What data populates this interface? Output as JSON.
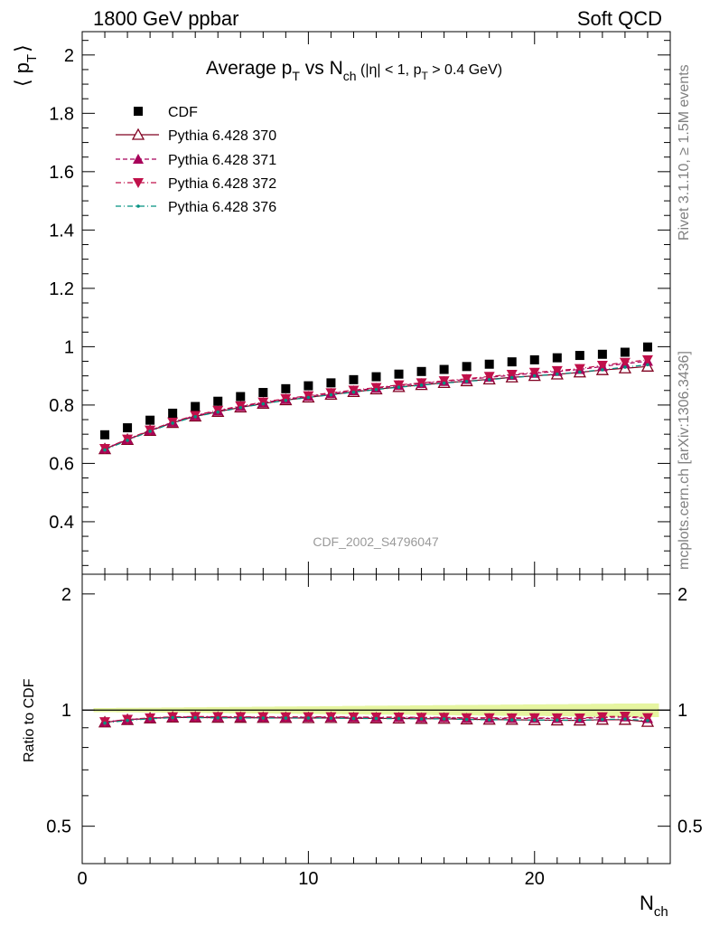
{
  "header": {
    "left": "1800 GeV ppbar",
    "right": "Soft QCD"
  },
  "side_labels": {
    "rivet": "Rivet 3.1.10, ≥ 1.5M events",
    "mcplots": "mcplots.cern.ch [arXiv:1306.3436]"
  },
  "watermark": "CDF_2002_S4796047",
  "title": {
    "avg": "Average p",
    "t1": "T",
    "vs": " vs N",
    "ch": "ch",
    "rest_a": " (|η| < 1, p",
    "t2": "T",
    "rest_b": " > 0.4 GeV)"
  },
  "axes": {
    "ylabel_main": {
      "l": "⟨ p",
      "sub": "T",
      "r": "⟩"
    },
    "ylabel_ratio": "Ratio to CDF",
    "xlabel": {
      "main": "N",
      "sub": "ch"
    },
    "x_ticks": [
      "0",
      "10",
      "20"
    ],
    "y_ticks_main": [
      "0.4",
      "0.6",
      "0.8",
      "1",
      "1.2",
      "1.4",
      "1.6",
      "1.8",
      "2"
    ],
    "y_ticks_ratio": [
      "0.5",
      "1",
      "2"
    ]
  },
  "legend": [
    {
      "label": "CDF"
    },
    {
      "label": "Pythia 6.428 370"
    },
    {
      "label": "Pythia 6.428 371"
    },
    {
      "label": "Pythia 6.428 372"
    },
    {
      "label": "Pythia 6.428 376"
    }
  ],
  "chart_data": {
    "type": "scatter",
    "x_label": "N_ch",
    "y_label": "<p_T>",
    "xlim": [
      0,
      26
    ],
    "ylim": [
      0.22,
      2.08
    ],
    "ratio_ylim": [
      0.4,
      2.25
    ],
    "ratio_log": true,
    "legend_position": "top-left",
    "x": [
      1,
      2,
      3,
      4,
      5,
      6,
      7,
      8,
      9,
      10,
      11,
      12,
      13,
      14,
      15,
      16,
      17,
      18,
      19,
      20,
      21,
      22,
      23,
      24,
      25
    ],
    "series": [
      {
        "name": "CDF",
        "color": "#000000",
        "marker": "square",
        "values": [
          0.698,
          0.722,
          0.748,
          0.772,
          0.795,
          0.813,
          0.829,
          0.843,
          0.856,
          0.866,
          0.876,
          0.887,
          0.897,
          0.906,
          0.915,
          0.922,
          0.932,
          0.94,
          0.948,
          0.955,
          0.962,
          0.97,
          0.974,
          0.981,
          0.999
        ]
      },
      {
        "name": "Pythia 6.428 370",
        "color": "#800020",
        "marker": "triangle-open",
        "line": "solid",
        "values": [
          0.649,
          0.681,
          0.712,
          0.739,
          0.761,
          0.777,
          0.792,
          0.805,
          0.817,
          0.826,
          0.836,
          0.845,
          0.854,
          0.862,
          0.869,
          0.876,
          0.882,
          0.888,
          0.895,
          0.9,
          0.905,
          0.912,
          0.92,
          0.926,
          0.932
        ]
      },
      {
        "name": "Pythia 6.428 371",
        "color": "#a8005a",
        "marker": "triangle-up",
        "line": "dashed",
        "values": [
          0.65,
          0.682,
          0.713,
          0.741,
          0.763,
          0.78,
          0.795,
          0.808,
          0.82,
          0.83,
          0.84,
          0.849,
          0.858,
          0.867,
          0.874,
          0.881,
          0.888,
          0.895,
          0.902,
          0.909,
          0.915,
          0.922,
          0.932,
          0.942,
          0.95
        ]
      },
      {
        "name": "Pythia 6.428 372",
        "color": "#c0104a",
        "marker": "triangle-down",
        "line": "dashdot",
        "values": [
          0.651,
          0.683,
          0.714,
          0.742,
          0.765,
          0.782,
          0.797,
          0.81,
          0.822,
          0.832,
          0.842,
          0.851,
          0.86,
          0.869,
          0.876,
          0.883,
          0.89,
          0.898,
          0.905,
          0.912,
          0.918,
          0.925,
          0.936,
          0.946,
          0.955
        ]
      },
      {
        "name": "Pythia 6.428 376",
        "color": "#009080",
        "marker": "dot",
        "line": "dashdot",
        "values": [
          0.646,
          0.679,
          0.71,
          0.738,
          0.76,
          0.776,
          0.791,
          0.804,
          0.816,
          0.826,
          0.835,
          0.844,
          0.853,
          0.861,
          0.868,
          0.875,
          0.881,
          0.887,
          0.894,
          0.9,
          0.906,
          0.913,
          0.921,
          0.93,
          0.938
        ]
      }
    ]
  }
}
